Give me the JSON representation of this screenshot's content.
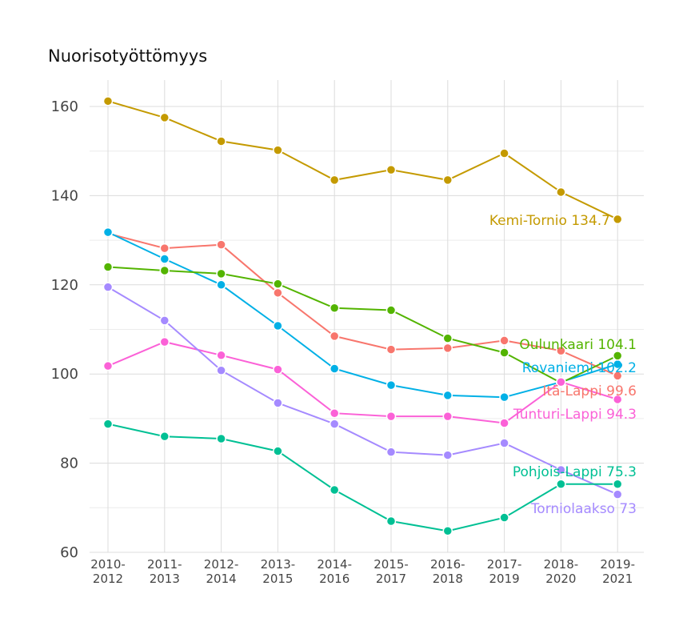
{
  "chart_data": {
    "type": "line",
    "title": "Nuorisotyöttömyys",
    "xlabel": "",
    "ylabel": "",
    "ylim": [
      60,
      165
    ],
    "yticks": [
      60,
      80,
      100,
      120,
      140,
      160
    ],
    "grid": true,
    "legend": "none (direct labels at line ends)",
    "categories": [
      [
        "2010-",
        "2012"
      ],
      [
        "2011-",
        "2013"
      ],
      [
        "2012-",
        "2014"
      ],
      [
        "2013-",
        "2015"
      ],
      [
        "2014-",
        "2016"
      ],
      [
        "2015-",
        "2017"
      ],
      [
        "2016-",
        "2018"
      ],
      [
        "2017-",
        "2019"
      ],
      [
        "2018-",
        "2020"
      ],
      [
        "2019-",
        "2021"
      ]
    ],
    "series": [
      {
        "name": "Kemi-Tornio",
        "end_label": "Kemi-Tornio 134.7",
        "color": "#C49A00",
        "values": [
          161.2,
          157.5,
          152.2,
          150.2,
          143.5,
          145.8,
          143.5,
          149.5,
          140.8,
          134.7
        ]
      },
      {
        "name": "Itä-Lappi",
        "end_label": "Itä-Lappi 99.6",
        "color": "#F8766D",
        "values": [
          131.5,
          128.2,
          129.0,
          118.2,
          108.5,
          105.5,
          105.8,
          107.5,
          105.2,
          99.6
        ]
      },
      {
        "name": "Rovaniemi",
        "end_label": "Rovaniemi 102.2",
        "color": "#00B0E6",
        "values": [
          131.8,
          125.8,
          120.0,
          110.8,
          101.2,
          97.5,
          95.2,
          94.8,
          98.2,
          102.2
        ]
      },
      {
        "name": "Oulunkaari",
        "end_label": "Oulunkaari 104.1",
        "color": "#53B400",
        "values": [
          124.0,
          123.2,
          122.5,
          120.2,
          114.8,
          114.3,
          108.0,
          104.8,
          98.0,
          104.1
        ]
      },
      {
        "name": "Tunturi-Lappi",
        "end_label": "Tunturi-Lappi 94.3",
        "color": "#FB61D7",
        "values": [
          101.8,
          107.2,
          104.2,
          101.0,
          91.2,
          90.5,
          90.5,
          89.0,
          98.2,
          94.3
        ]
      },
      {
        "name": "Torniolaakso",
        "end_label": "Torniolaakso 73",
        "color": "#A58AFF",
        "values": [
          119.5,
          112.0,
          100.8,
          93.5,
          88.8,
          82.5,
          81.8,
          84.5,
          78.5,
          73.0
        ]
      },
      {
        "name": "Pohjois-Lappi",
        "end_label": "Pohjois-Lappi 75.3",
        "color": "#00C094",
        "values": [
          88.8,
          86.0,
          85.5,
          82.7,
          74.0,
          67.0,
          64.8,
          67.8,
          75.3,
          75.3
        ]
      }
    ]
  }
}
